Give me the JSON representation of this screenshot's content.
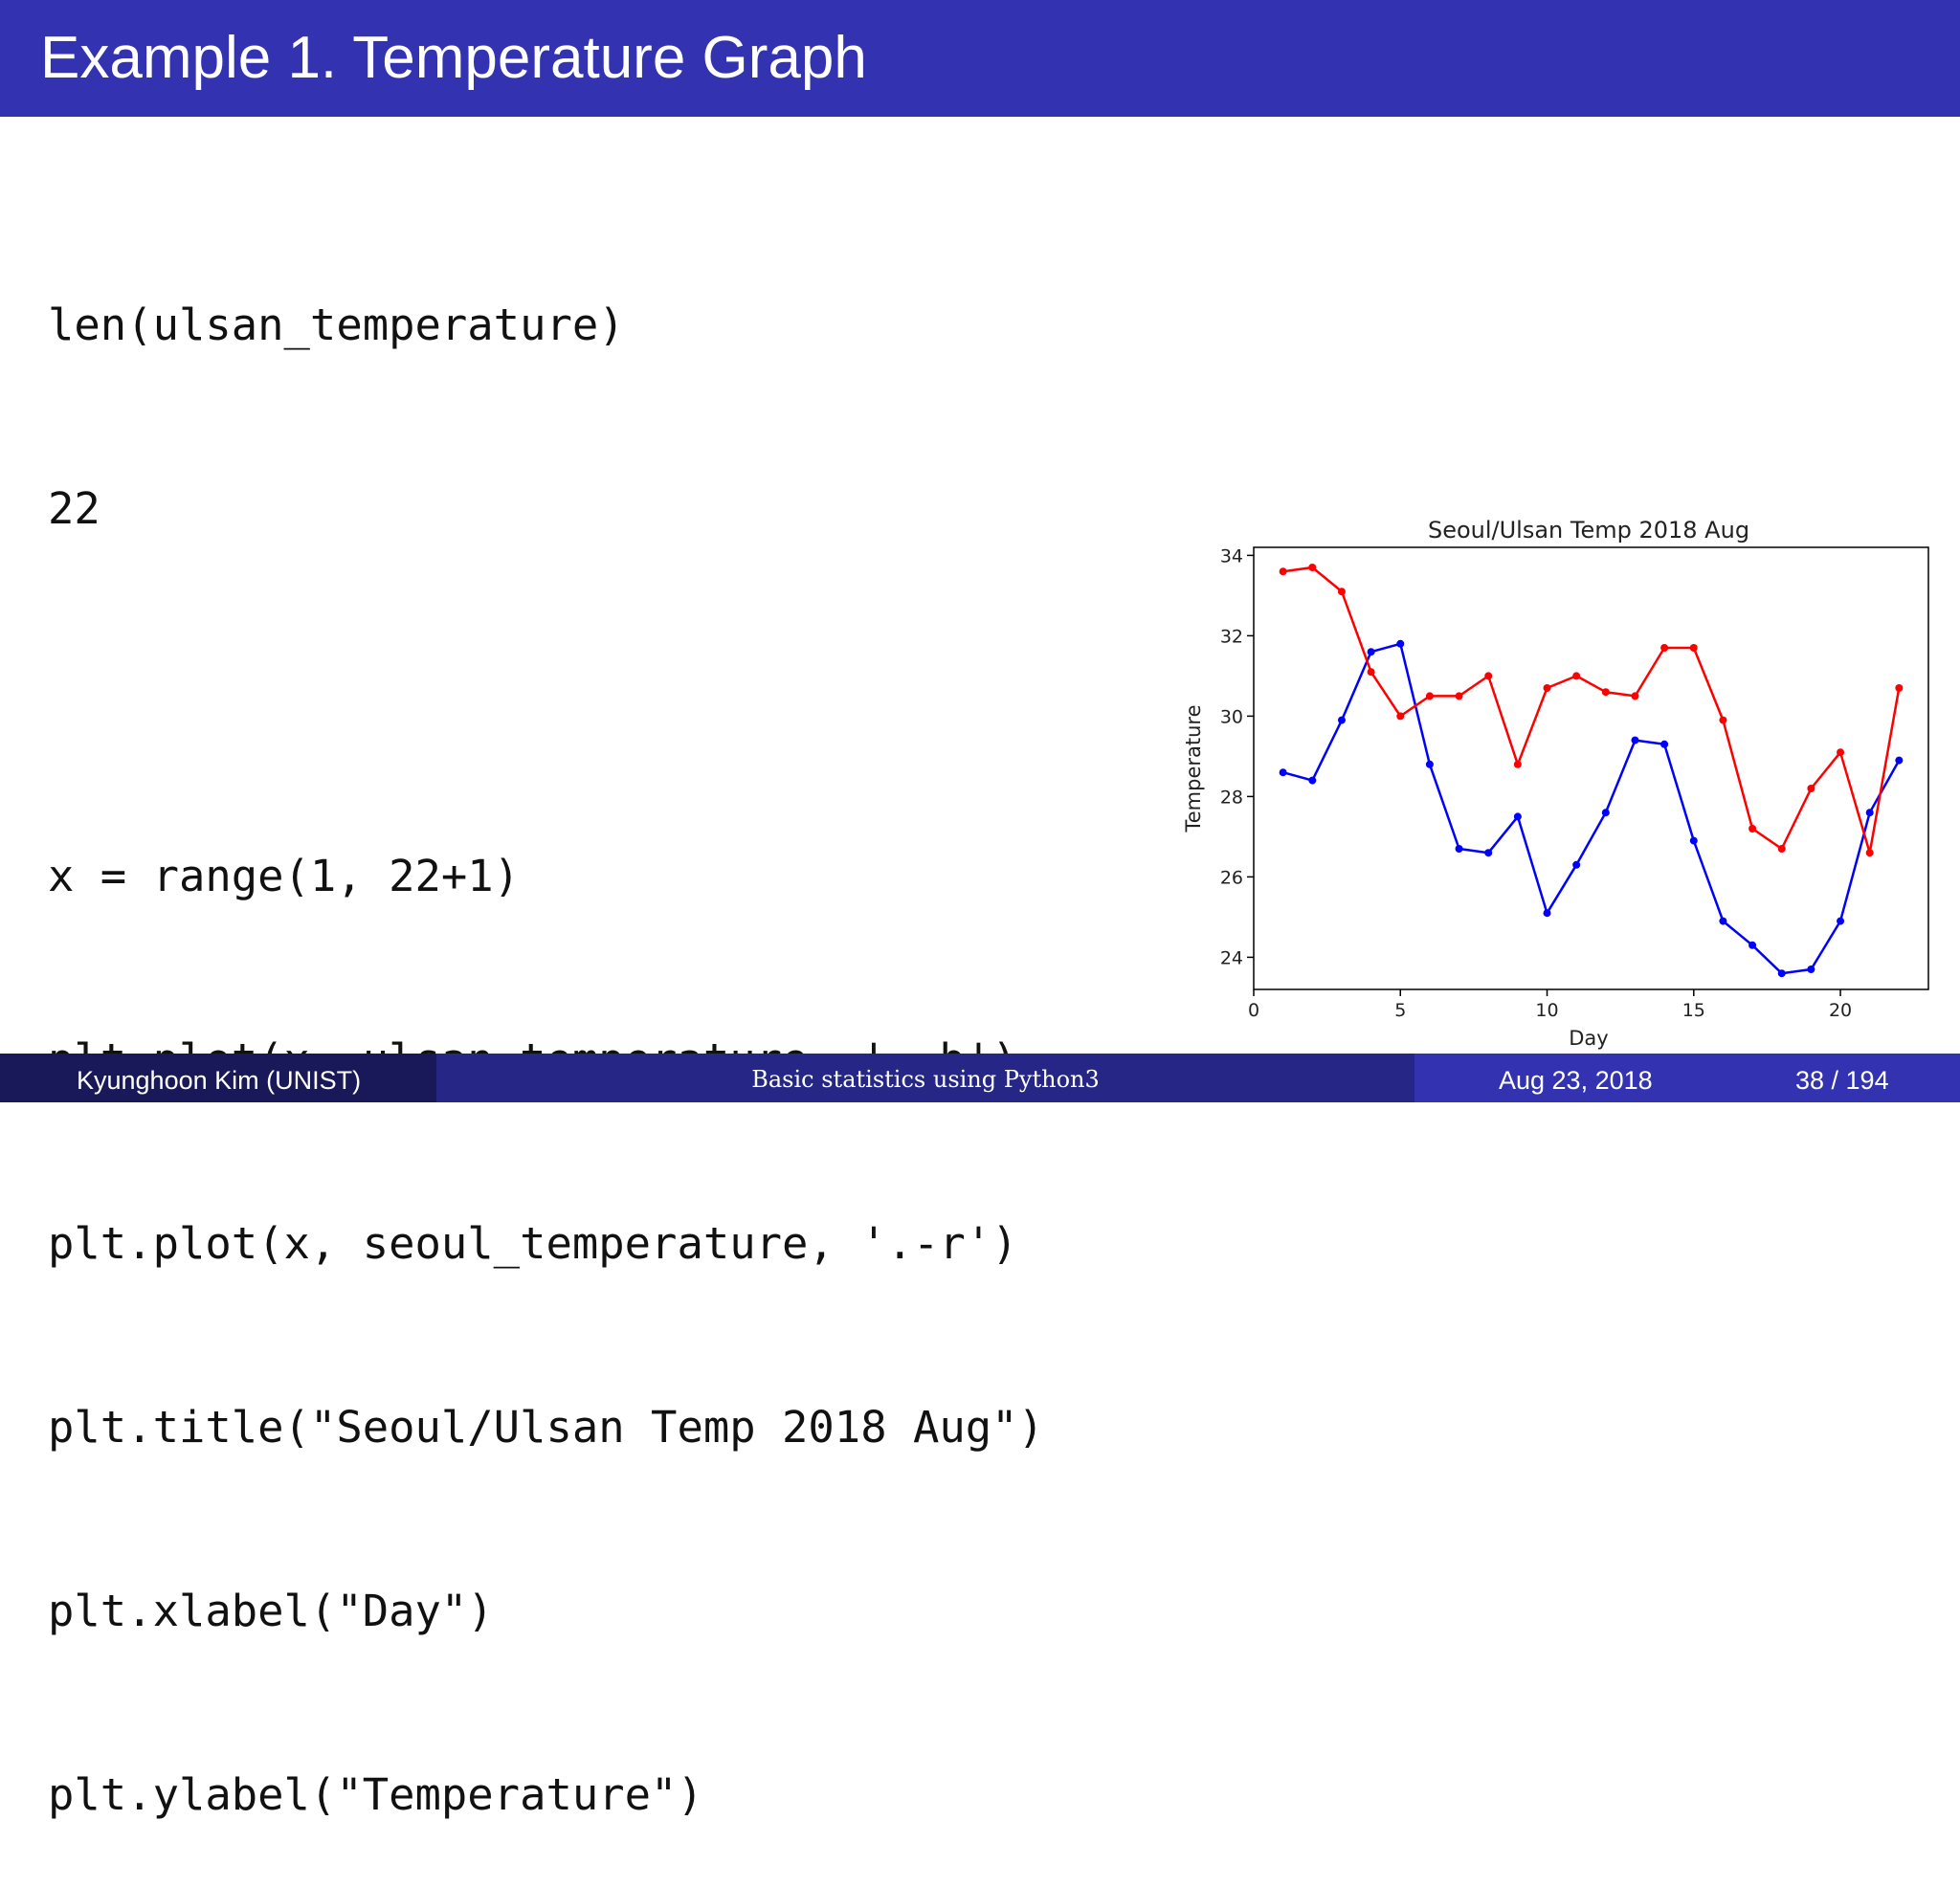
{
  "slide": {
    "title": "Example 1. Temperature Graph",
    "code_lines": [
      "len(ulsan_temperature)",
      "22",
      "",
      "x = range(1, 22+1)",
      "plt.plot(x, ulsan_temperature, '.-b')",
      "plt.plot(x, seoul_temperature, '.-r')",
      "plt.title(\"Seoul/Ulsan Temp 2018 Aug\")",
      "plt.xlabel(\"Day\")",
      "plt.ylabel(\"Temperature\")"
    ]
  },
  "footer": {
    "author": "Kyunghoon Kim (UNIST)",
    "course": "Basic statistics using Python3",
    "date": "Aug 23, 2018",
    "page": "38 / 194"
  },
  "chart_data": {
    "type": "line",
    "title": "Seoul/Ulsan Temp 2018 Aug",
    "xlabel": "Day",
    "ylabel": "Temperature",
    "xlim": [
      0,
      23
    ],
    "ylim": [
      23.2,
      34.2
    ],
    "xticks": [
      0,
      5,
      10,
      15,
      20
    ],
    "yticks": [
      24,
      26,
      28,
      30,
      32,
      34
    ],
    "grid": false,
    "x": [
      1,
      2,
      3,
      4,
      5,
      6,
      7,
      8,
      9,
      10,
      11,
      12,
      13,
      14,
      15,
      16,
      17,
      18,
      19,
      20,
      21,
      22
    ],
    "series": [
      {
        "color": "#0000ff",
        "values": [
          28.6,
          28.4,
          29.9,
          31.6,
          31.8,
          28.8,
          26.7,
          26.6,
          27.5,
          25.1,
          26.3,
          27.6,
          29.4,
          29.3,
          26.9,
          24.9,
          24.3,
          23.6,
          23.7,
          24.9,
          27.6,
          28.9
        ]
      },
      {
        "color": "#ff0000",
        "values": [
          33.6,
          33.7,
          33.1,
          31.1,
          30.0,
          30.5,
          30.5,
          31.0,
          28.8,
          30.7,
          31.0,
          30.6,
          30.5,
          31.7,
          31.7,
          29.9,
          27.2,
          26.7,
          28.2,
          29.1,
          26.6,
          30.7
        ]
      }
    ]
  }
}
